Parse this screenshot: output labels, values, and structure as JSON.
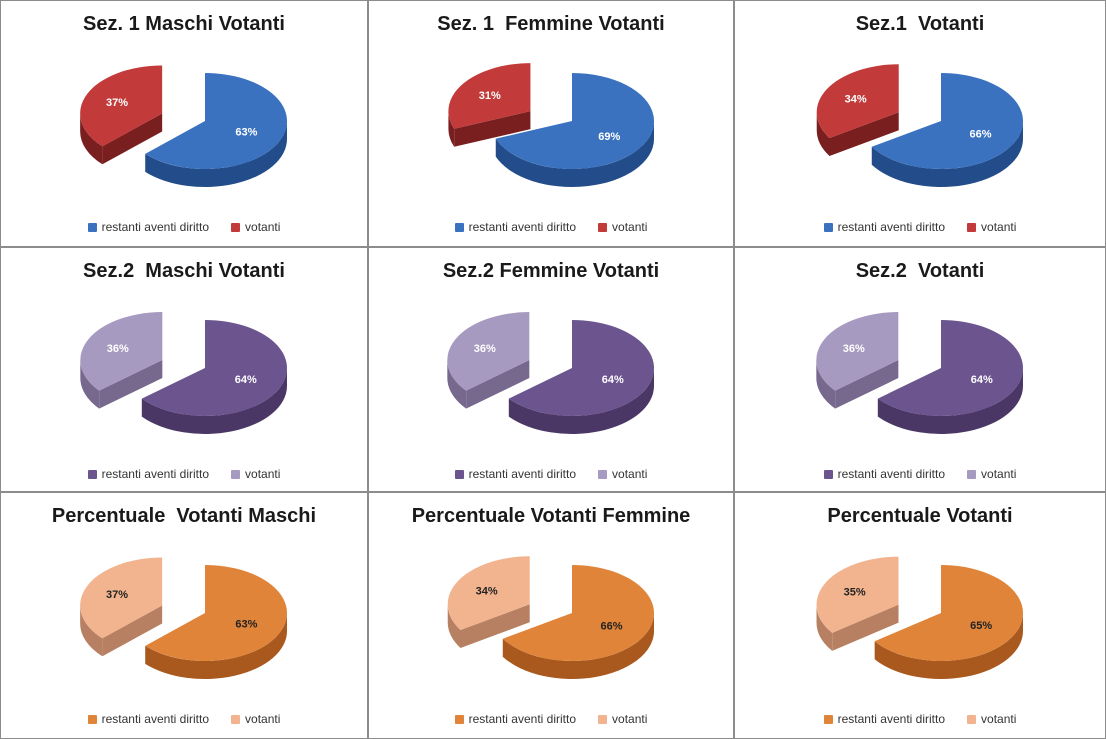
{
  "legend_labels": {
    "main": "restanti aventi diritto",
    "small": "votanti"
  },
  "palettes": {
    "red": {
      "main": "#3a72c0",
      "main_dark": "#224c8a",
      "small": "#c23a3a",
      "small_dark": "#7a1f1f",
      "main_label_color": "#ffffff",
      "small_label_color": "#ffffff"
    },
    "purple": {
      "main": "#6c548f",
      "main_dark": "#4a3766",
      "small": "#a79ac0",
      "small_dark": "#76698d",
      "main_label_color": "#ffffff",
      "small_label_color": "#ffffff"
    },
    "orange": {
      "main": "#e0843a",
      "main_dark": "#a9581e",
      "small": "#f2b48e",
      "small_dark": "#b78062",
      "main_label_color": "#222222",
      "small_label_color": "#222222"
    }
  },
  "chart_data": [
    {
      "type": "pie",
      "title": "Sez. 1 Maschi Votanti",
      "palette": "red",
      "categories": [
        "restanti aventi diritto",
        "votanti"
      ],
      "values": [
        63,
        37
      ],
      "labels": [
        "63%",
        "37%"
      ]
    },
    {
      "type": "pie",
      "title": "Sez. 1  Femmine Votanti",
      "palette": "red",
      "categories": [
        "restanti aventi diritto",
        "votanti"
      ],
      "values": [
        69,
        31
      ],
      "labels": [
        "69%",
        "31%"
      ]
    },
    {
      "type": "pie",
      "title": "Sez.1  Votanti",
      "palette": "red",
      "categories": [
        "restanti aventi diritto",
        "votanti"
      ],
      "values": [
        66,
        34
      ],
      "labels": [
        "66%",
        "34%"
      ]
    },
    {
      "type": "pie",
      "title": "Sez.2  Maschi Votanti",
      "palette": "purple",
      "categories": [
        "restanti aventi diritto",
        "votanti"
      ],
      "values": [
        64,
        36
      ],
      "labels": [
        "64%",
        "36%"
      ]
    },
    {
      "type": "pie",
      "title": "Sez.2 Femmine Votanti",
      "palette": "purple",
      "categories": [
        "restanti aventi diritto",
        "votanti"
      ],
      "values": [
        64,
        36
      ],
      "labels": [
        "64%",
        "36%"
      ]
    },
    {
      "type": "pie",
      "title": "Sez.2  Votanti",
      "palette": "purple",
      "categories": [
        "restanti aventi diritto",
        "votanti"
      ],
      "values": [
        64,
        36
      ],
      "labels": [
        "64%",
        "36%"
      ]
    },
    {
      "type": "pie",
      "title": "Percentuale  Votanti Maschi",
      "palette": "orange",
      "categories": [
        "restanti aventi diritto",
        "votanti"
      ],
      "values": [
        63,
        37
      ],
      "labels": [
        "63%",
        "37%"
      ]
    },
    {
      "type": "pie",
      "title": "Percentuale Votanti Femmine",
      "palette": "orange",
      "categories": [
        "restanti aventi diritto",
        "votanti"
      ],
      "values": [
        66,
        34
      ],
      "labels": [
        "66%",
        "34%"
      ]
    },
    {
      "type": "pie",
      "title": "Percentuale Votanti",
      "palette": "orange",
      "categories": [
        "restanti aventi diritto",
        "votanti"
      ],
      "values": [
        65,
        35
      ],
      "labels": [
        "65%",
        "35%"
      ]
    }
  ]
}
